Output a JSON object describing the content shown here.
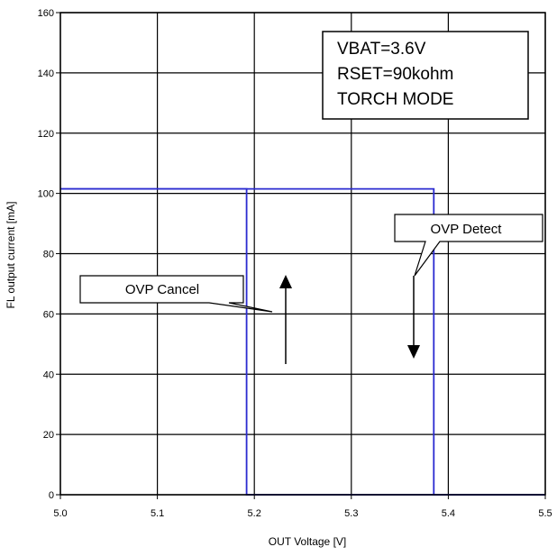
{
  "chart_data": {
    "type": "line",
    "title": "",
    "xlabel": "OUT Voltage [V]",
    "ylabel": "FL output current [mA]",
    "xlim": [
      5.0,
      5.5
    ],
    "ylim": [
      0,
      160
    ],
    "x_ticks": [
      "5.0",
      "5.1",
      "5.2",
      "5.3",
      "5.4",
      "5.5"
    ],
    "y_ticks": [
      "0",
      "20",
      "40",
      "60",
      "80",
      "100",
      "120",
      "140",
      "160"
    ],
    "grid": true,
    "series": [
      {
        "color": "#2b2bd0",
        "x": [
          5.0,
          5.192,
          5.192,
          5.5
        ],
        "y": [
          101.5,
          101.5,
          0,
          0
        ]
      },
      {
        "color": "#2b2bd0",
        "x": [
          5.0,
          5.385,
          5.385,
          5.5
        ],
        "y": [
          101.5,
          101.5,
          0,
          0
        ]
      }
    ],
    "info_box": [
      "VBAT=3.6V",
      "RSET=90kohm",
      "TORCH MODE"
    ],
    "annotations": {
      "cancel": "OVP Cancel",
      "detect": "OVP Detect"
    }
  }
}
